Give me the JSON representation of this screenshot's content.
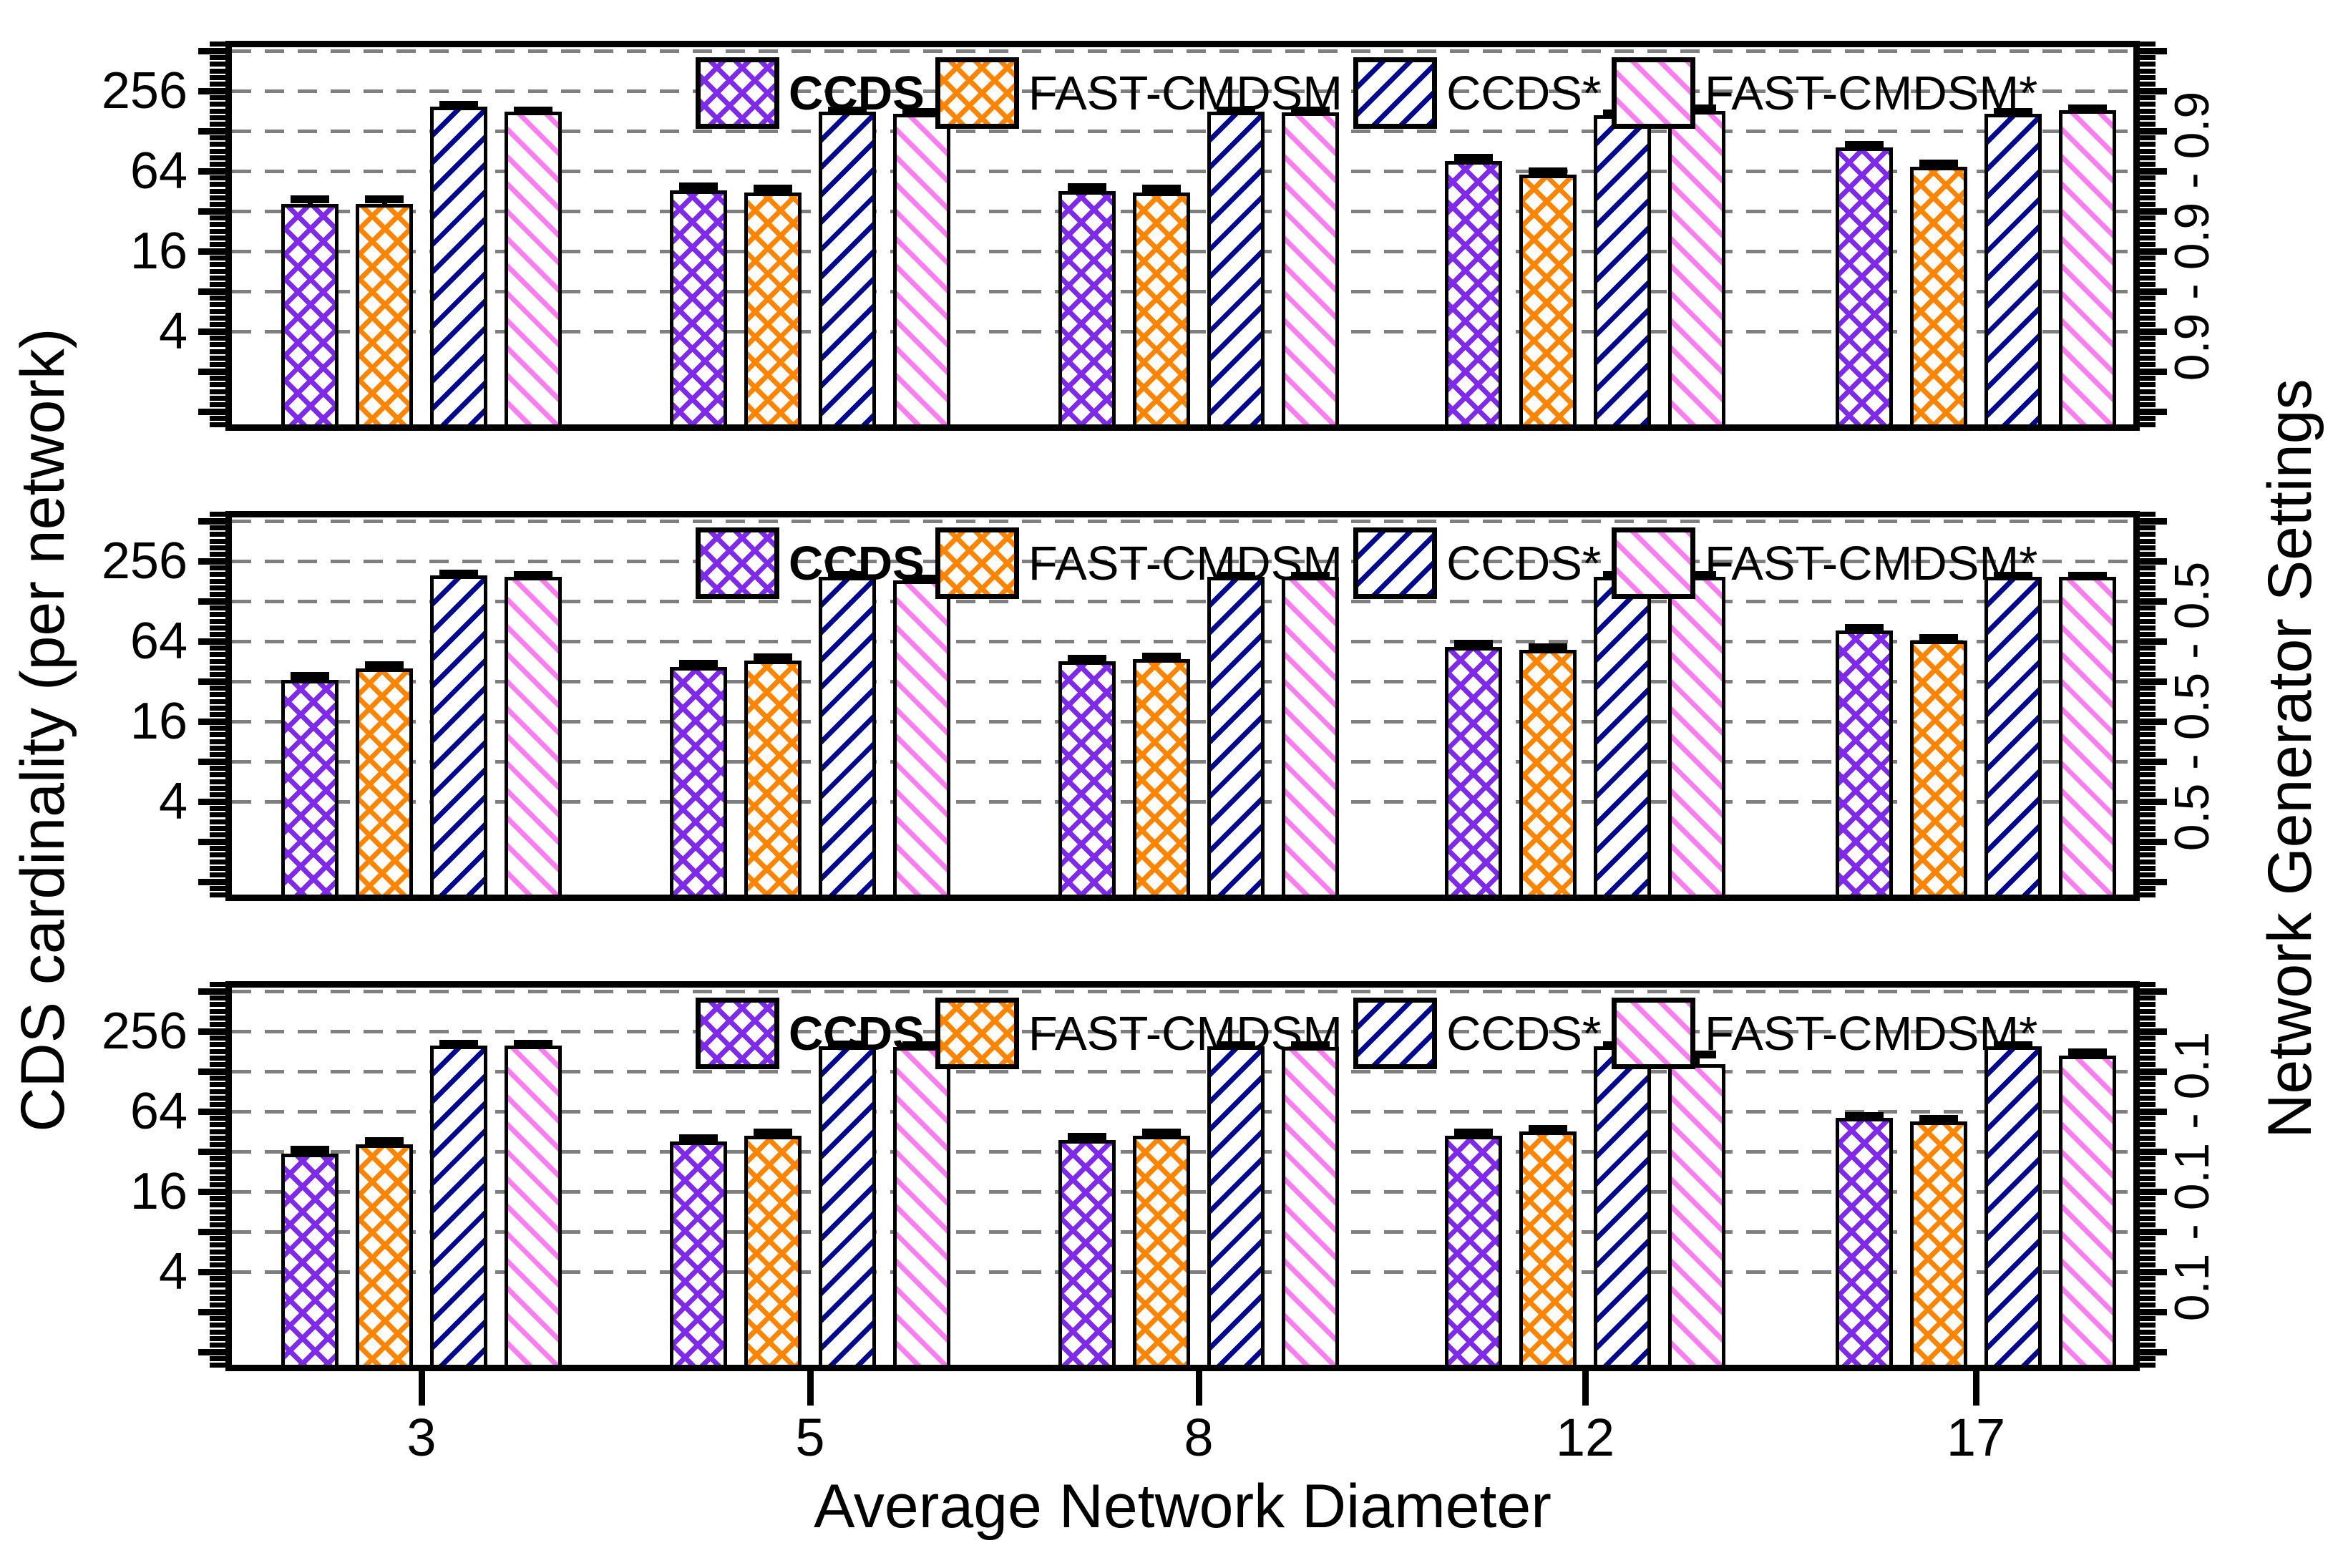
{
  "figure": {
    "x_axis": {
      "label": "Average Network Diameter",
      "tick_labels": [
        "3",
        "5",
        "8",
        "12",
        "17"
      ]
    },
    "y_axis": {
      "label": "CDS cardinality (per network)",
      "tick_labels": [
        "4",
        "16",
        "64",
        "256"
      ]
    },
    "right_axis": {
      "label": "Network Generator Settings",
      "panel_labels": [
        "0.9 - 0.9 - 0.9",
        "0.5 - 0.5 - 0.5",
        "0.1 - 0.1 - 0.1"
      ]
    },
    "legend": [
      {
        "label": "CCDS",
        "bold": true,
        "pattern": "crosshatch",
        "color": "#7E2AE8"
      },
      {
        "label": "FAST-CMDSM",
        "bold": false,
        "pattern": "crosshatch",
        "color": "#FF8400"
      },
      {
        "label": "CCDS*",
        "bold": false,
        "pattern": "diag-up",
        "color": "#000890"
      },
      {
        "label": "FAST-CMDSM*",
        "bold": false,
        "pattern": "diag-down",
        "color": "#FB7DF0"
      }
    ],
    "colors": {
      "grid": "#7F7F7F",
      "frame": "#000000",
      "background": "#FFFFFF",
      "error_bar": "#000000"
    }
  },
  "chart_data": [
    {
      "type": "bar",
      "y_scale": "log2",
      "panel_label": "0.9 - 0.9 - 0.9",
      "categories": [
        3,
        5,
        8,
        12,
        17
      ],
      "gridlines": [
        4,
        8,
        16,
        32,
        64,
        128,
        256,
        512
      ],
      "labeled_yticks": [
        4,
        16,
        64,
        256
      ],
      "ylim": [
        0.72,
        609
      ],
      "series": [
        {
          "name": "CCDS",
          "values": [
            36,
            46,
            45,
            76,
            96
          ],
          "err": [
            3,
            3,
            3,
            4,
            4
          ]
        },
        {
          "name": "FAST-CMDSM",
          "values": [
            36,
            44,
            44,
            60,
            69
          ],
          "err": [
            3,
            3,
            3,
            3,
            3
          ]
        },
        {
          "name": "CCDS*",
          "values": [
            195,
            178,
            178,
            168,
            172
          ],
          "err": [
            4,
            4,
            4,
            4,
            4
          ]
        },
        {
          "name": "FAST-CMDSM*",
          "values": [
            178,
            172,
            176,
            182,
            184
          ],
          "err": [
            4,
            4,
            4,
            6,
            4
          ]
        }
      ]
    },
    {
      "type": "bar",
      "y_scale": "log2",
      "panel_label": "0.5 - 0.5 - 0.5",
      "categories": [
        3,
        5,
        8,
        12,
        17
      ],
      "gridlines": [
        4,
        8,
        16,
        32,
        64,
        128,
        256,
        512
      ],
      "labeled_yticks": [
        4,
        16,
        64,
        256
      ],
      "ylim": [
        0.72,
        609
      ],
      "series": [
        {
          "name": "CCDS",
          "values": [
            33,
            41,
            45,
            58,
            77
          ],
          "err": [
            2,
            2,
            2,
            3,
            3
          ]
        },
        {
          "name": "FAST-CMDSM",
          "values": [
            40,
            46,
            47,
            55,
            65
          ],
          "err": [
            2,
            2,
            2,
            2,
            2
          ]
        },
        {
          "name": "CCDS*",
          "values": [
            200,
            196,
            194,
            196,
            194
          ],
          "err": [
            4,
            4,
            4,
            4,
            4
          ]
        },
        {
          "name": "FAST-CMDSM*",
          "values": [
            196,
            184,
            194,
            195,
            194
          ],
          "err": [
            4,
            4,
            4,
            4,
            4
          ]
        }
      ]
    },
    {
      "type": "bar",
      "y_scale": "log2",
      "panel_label": "0.1 - 0.1 - 0.1",
      "categories": [
        3,
        5,
        8,
        12,
        17
      ],
      "gridlines": [
        4,
        8,
        16,
        32,
        64,
        128,
        256,
        512
      ],
      "labeled_yticks": [
        4,
        16,
        64,
        256
      ],
      "ylim": [
        0.72,
        609
      ],
      "series": [
        {
          "name": "CCDS",
          "values": [
            31,
            38,
            39,
            42,
            57
          ],
          "err": [
            2,
            2,
            2,
            2,
            2
          ]
        },
        {
          "name": "FAST-CMDSM",
          "values": [
            36,
            42,
            42,
            45,
            54
          ],
          "err": [
            2,
            2,
            2,
            2,
            2
          ]
        },
        {
          "name": "CCDS*",
          "values": [
            200,
            198,
            197,
            197,
            197
          ],
          "err": [
            4,
            4,
            4,
            4,
            4
          ]
        },
        {
          "name": "FAST-CMDSM*",
          "values": [
            200,
            196,
            196,
            145,
            168
          ],
          "err": [
            4,
            4,
            4,
            25,
            8
          ]
        }
      ]
    }
  ]
}
